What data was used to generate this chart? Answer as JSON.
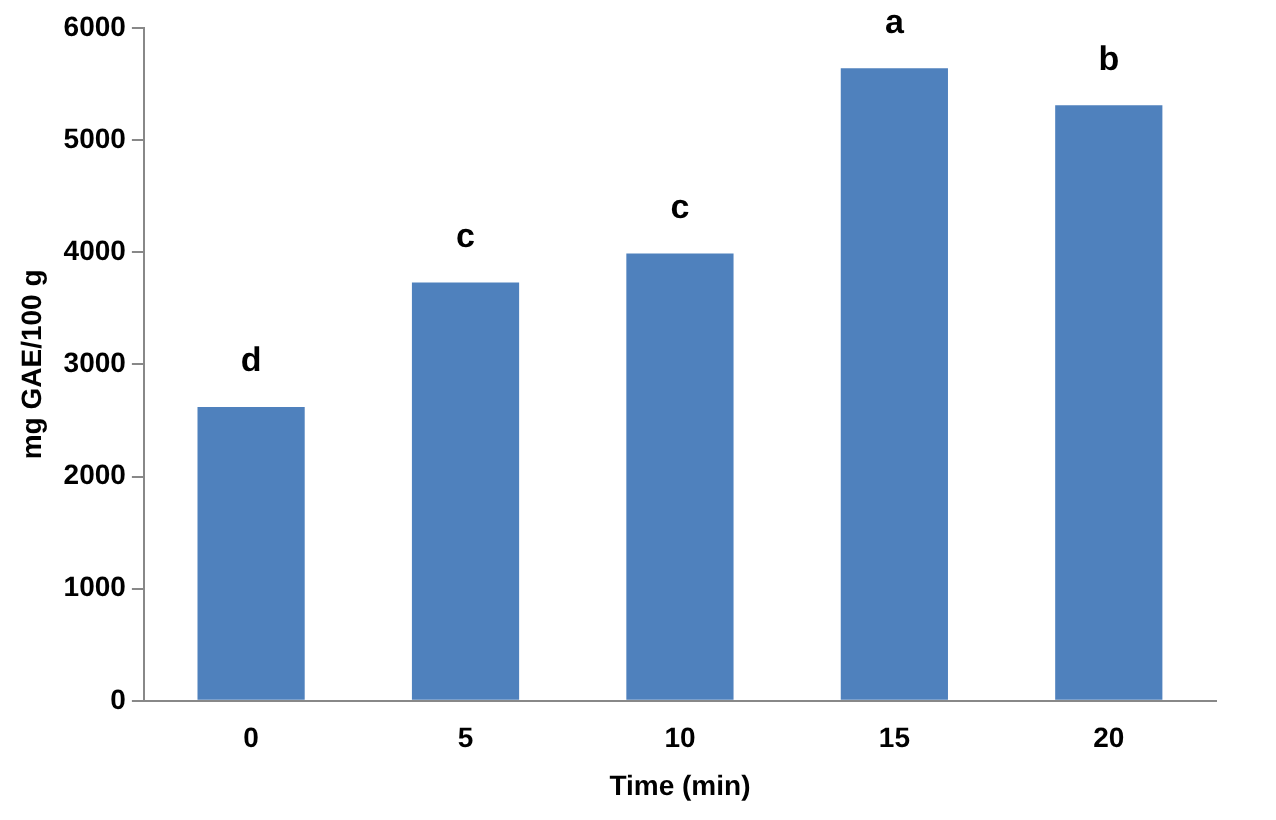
{
  "chart_data": {
    "type": "bar",
    "xlabel": "Time (min)",
    "ylabel": "mg GAE/100 g",
    "categories": [
      "0",
      "5",
      "10",
      "15",
      "20"
    ],
    "values": [
      2620,
      3730,
      3990,
      5640,
      5310
    ],
    "color": "#4f81bd",
    "ylim": [
      0,
      6000
    ],
    "yticks": [
      0,
      1000,
      2000,
      3000,
      4000,
      5000,
      6000
    ],
    "grid": false,
    "annotations": [
      {
        "text": "d",
        "x": "0",
        "y": 2620
      },
      {
        "text": "c",
        "x": "5",
        "y": 3730
      },
      {
        "text": "c",
        "x": "10",
        "y": 3990
      },
      {
        "text": "a",
        "x": "15",
        "y": 5640
      },
      {
        "text": "b",
        "x": "20",
        "y": 5310
      }
    ]
  }
}
